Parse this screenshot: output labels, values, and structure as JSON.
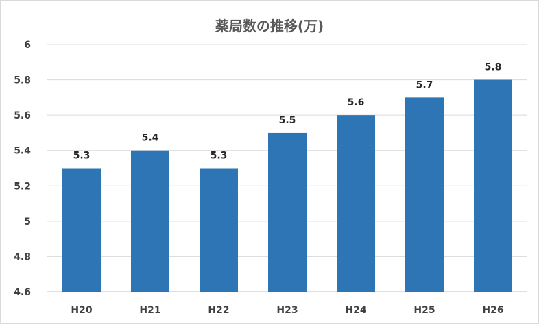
{
  "chart_data": {
    "type": "bar",
    "title": "薬局数の推移(万)",
    "categories": [
      "H20",
      "H21",
      "H22",
      "H23",
      "H24",
      "H25",
      "H26"
    ],
    "series": [
      {
        "values": [
          5.3,
          5.4,
          5.3,
          5.5,
          5.6,
          5.7,
          5.8
        ],
        "data_labels": [
          "5.3",
          "5.4",
          "5.3",
          "5.5",
          "5.6",
          "5.7",
          "5.8"
        ]
      }
    ],
    "ylim": [
      4.6,
      6.0
    ],
    "y_ticks": [
      "6",
      "5.8",
      "5.6",
      "5.4",
      "5.2",
      "5",
      "4.8",
      "4.6"
    ],
    "xlabel": "",
    "ylabel": "",
    "grid": true,
    "legend": "none",
    "bar_color": "#2e75b6"
  }
}
